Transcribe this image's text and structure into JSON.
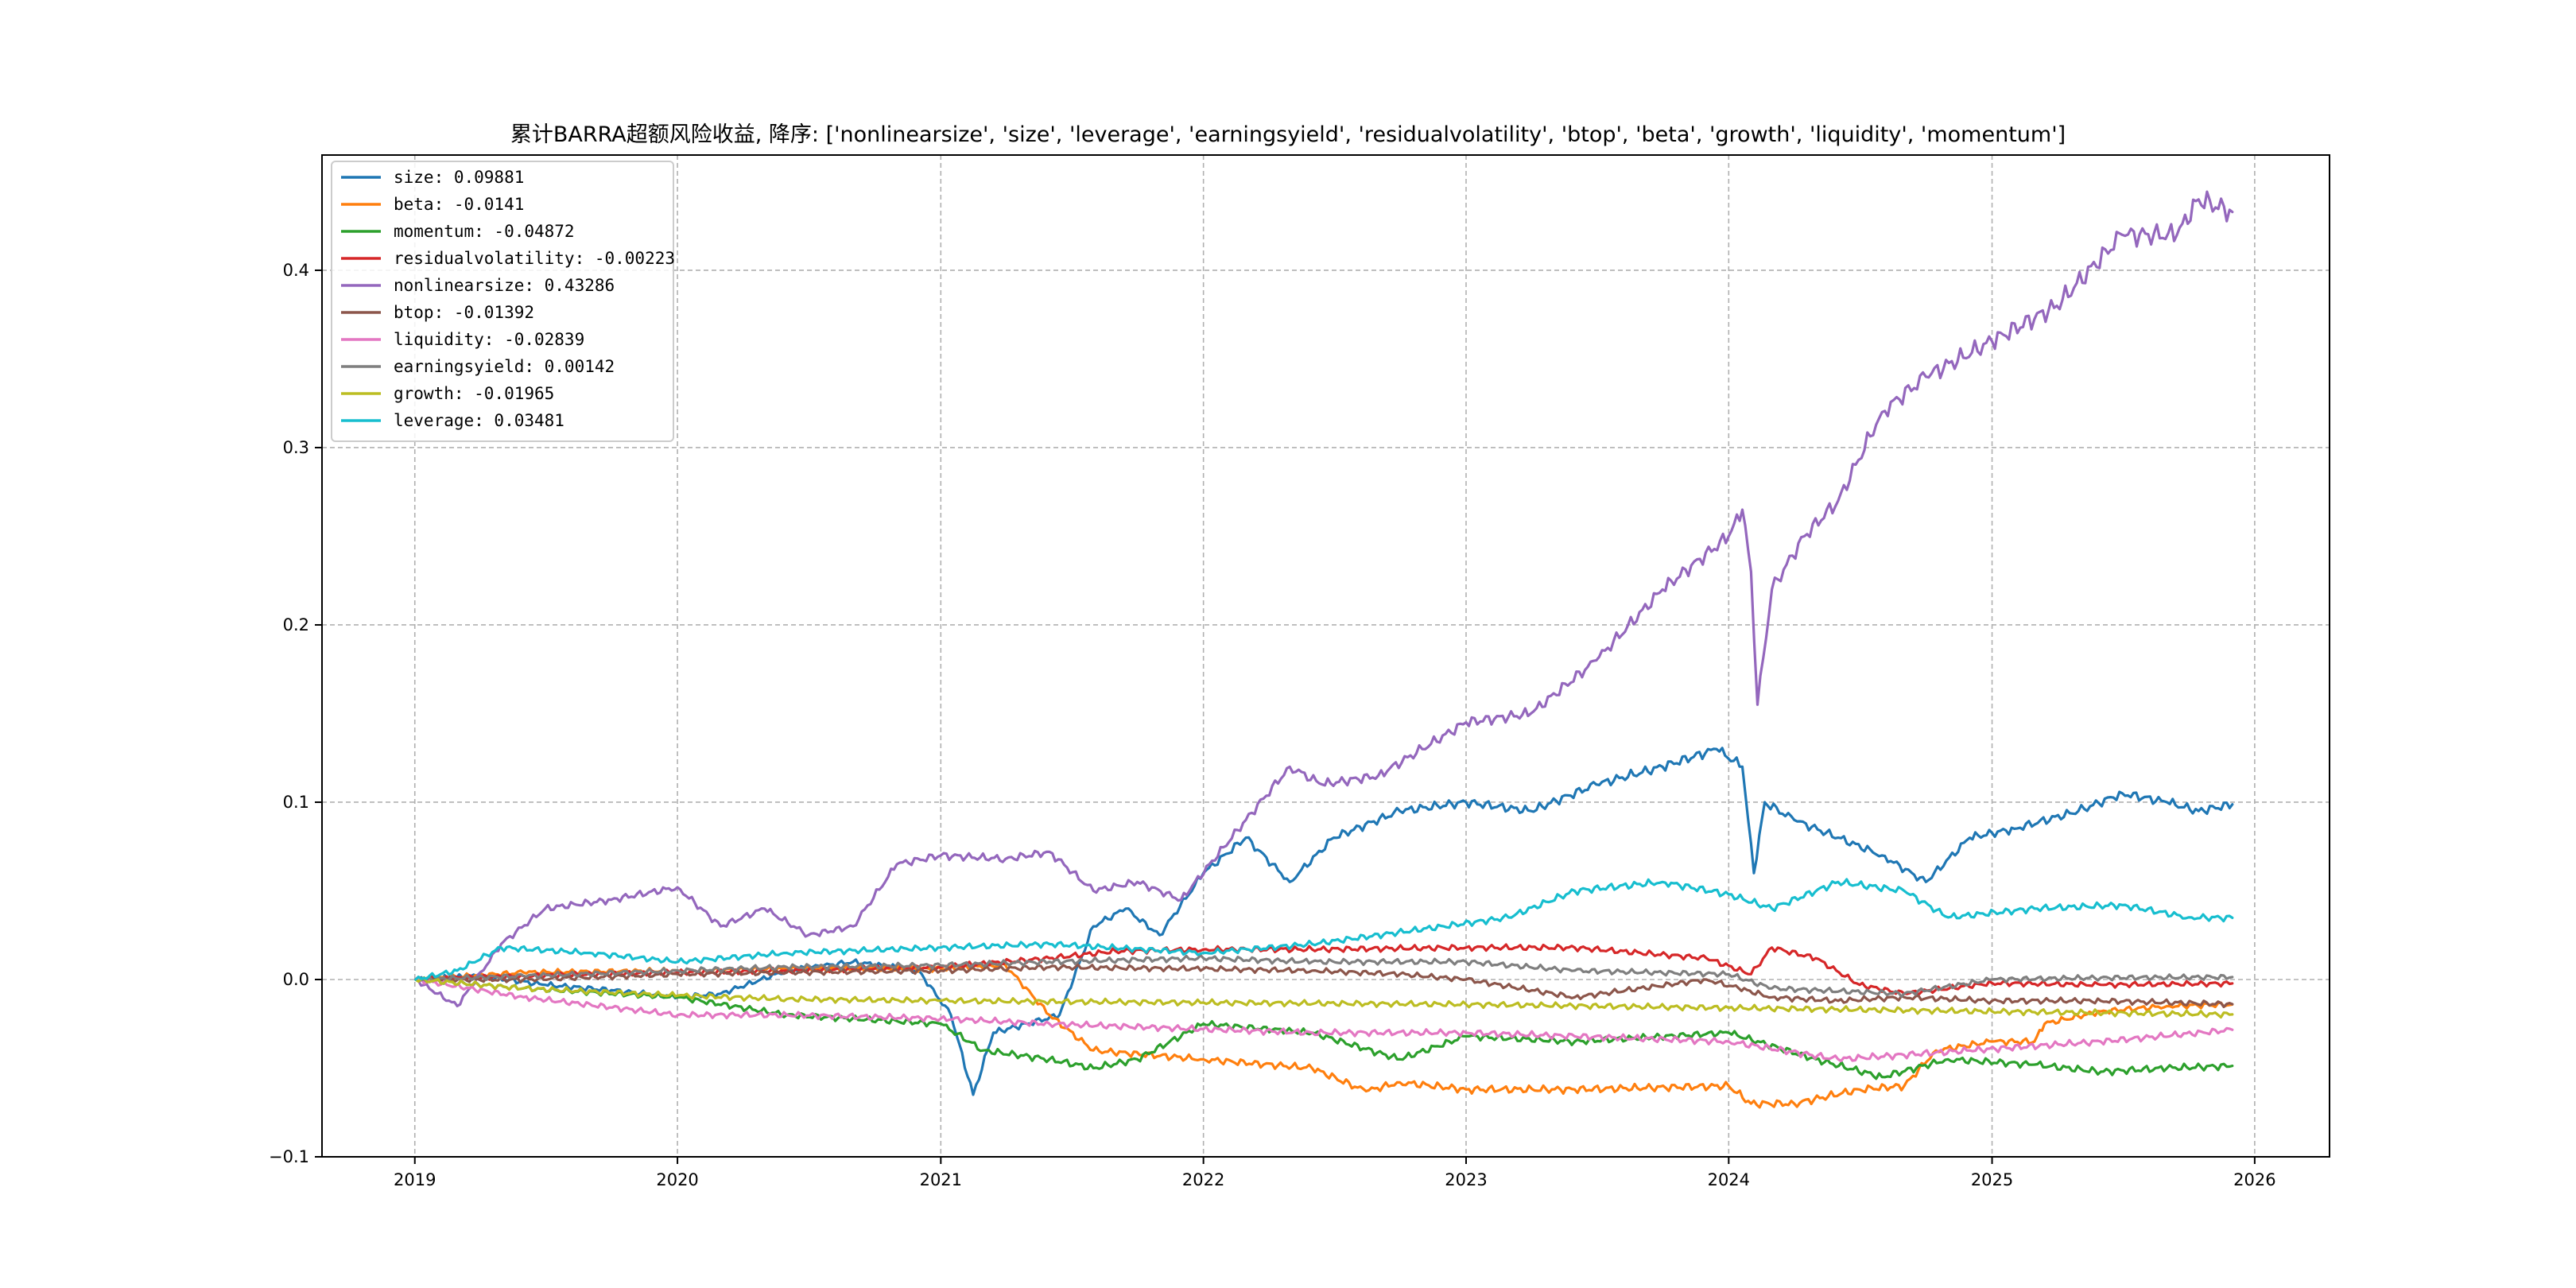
{
  "chart_data": {
    "type": "line",
    "title": "累计BARRA超额风险收益,  降序: ['nonlinearsize', 'size', 'leverage', 'earningsyield', 'residualvolatility', 'btop', 'beta', 'growth', 'liquidity', 'momentum']",
    "xlabel": "",
    "ylabel": "",
    "x_axis": "date",
    "xlim": [
      "2018-08-25",
      "2026-04-15"
    ],
    "ylim": [
      -0.1,
      0.465
    ],
    "x_ticks": [
      "2019",
      "2020",
      "2021",
      "2022",
      "2023",
      "2024",
      "2025",
      "2026"
    ],
    "y_ticks": [
      -0.1,
      0.0,
      0.1,
      0.2,
      0.3,
      0.4
    ],
    "y_tick_labels": [
      "−0.1",
      "0.0",
      "0.1",
      "0.2",
      "0.3",
      "0.4"
    ],
    "grid": true,
    "legend_placement": "upper-left",
    "series": [
      {
        "name": "size",
        "legend_label": "size: 0.09881",
        "color": "#1f77b4",
        "points": [
          [
            "2019-01-02",
            0.0
          ],
          [
            "2019-04-01",
            0.002
          ],
          [
            "2019-07-01",
            -0.003
          ],
          [
            "2019-10-01",
            -0.006
          ],
          [
            "2020-01-02",
            -0.01
          ],
          [
            "2020-03-01",
            -0.008
          ],
          [
            "2020-06-01",
            0.005
          ],
          [
            "2020-09-01",
            0.01
          ],
          [
            "2020-12-01",
            0.005
          ],
          [
            "2021-01-15",
            -0.02
          ],
          [
            "2021-02-15",
            -0.065
          ],
          [
            "2021-03-15",
            -0.03
          ],
          [
            "2021-05-01",
            -0.025
          ],
          [
            "2021-06-15",
            -0.02
          ],
          [
            "2021-08-01",
            0.03
          ],
          [
            "2021-09-15",
            0.04
          ],
          [
            "2021-11-01",
            0.025
          ],
          [
            "2022-01-01",
            0.06
          ],
          [
            "2022-03-01",
            0.08
          ],
          [
            "2022-05-01",
            0.055
          ],
          [
            "2022-07-01",
            0.08
          ],
          [
            "2022-10-01",
            0.095
          ],
          [
            "2023-01-01",
            0.1
          ],
          [
            "2023-04-01",
            0.095
          ],
          [
            "2023-07-01",
            0.11
          ],
          [
            "2023-10-01",
            0.12
          ],
          [
            "2023-12-15",
            0.13
          ],
          [
            "2024-01-20",
            0.12
          ],
          [
            "2024-02-05",
            0.06
          ],
          [
            "2024-02-20",
            0.1
          ],
          [
            "2024-04-01",
            0.09
          ],
          [
            "2024-06-01",
            0.08
          ],
          [
            "2024-08-01",
            0.07
          ],
          [
            "2024-10-01",
            0.055
          ],
          [
            "2024-12-01",
            0.08
          ],
          [
            "2025-02-01",
            0.085
          ],
          [
            "2025-05-01",
            0.095
          ],
          [
            "2025-07-01",
            0.105
          ],
          [
            "2025-09-01",
            0.1
          ],
          [
            "2025-10-15",
            0.095
          ],
          [
            "2025-12-01",
            0.0988
          ]
        ]
      },
      {
        "name": "beta",
        "legend_label": "beta: -0.0141",
        "color": "#ff7f0e",
        "points": [
          [
            "2019-01-02",
            0.0
          ],
          [
            "2019-06-01",
            0.004
          ],
          [
            "2020-01-02",
            0.005
          ],
          [
            "2020-06-01",
            0.006
          ],
          [
            "2021-01-01",
            0.006
          ],
          [
            "2021-04-01",
            0.008
          ],
          [
            "2021-06-01",
            -0.02
          ],
          [
            "2021-08-01",
            -0.04
          ],
          [
            "2022-01-01",
            -0.045
          ],
          [
            "2022-06-01",
            -0.05
          ],
          [
            "2022-08-15",
            -0.063
          ],
          [
            "2022-10-01",
            -0.058
          ],
          [
            "2023-01-01",
            -0.062
          ],
          [
            "2023-06-01",
            -0.062
          ],
          [
            "2024-01-01",
            -0.06
          ],
          [
            "2024-02-01",
            -0.07
          ],
          [
            "2024-04-01",
            -0.07
          ],
          [
            "2024-07-01",
            -0.062
          ],
          [
            "2024-09-01",
            -0.06
          ],
          [
            "2024-10-15",
            -0.04
          ],
          [
            "2025-01-01",
            -0.035
          ],
          [
            "2025-03-01",
            -0.035
          ],
          [
            "2025-03-15",
            -0.025
          ],
          [
            "2025-06-01",
            -0.018
          ],
          [
            "2025-09-01",
            -0.015
          ],
          [
            "2025-12-01",
            -0.0141
          ]
        ]
      },
      {
        "name": "momentum",
        "legend_label": "momentum: -0.04872",
        "color": "#2ca02c",
        "points": [
          [
            "2019-01-02",
            0.0
          ],
          [
            "2019-06-01",
            -0.005
          ],
          [
            "2020-01-02",
            -0.01
          ],
          [
            "2020-06-01",
            -0.02
          ],
          [
            "2021-01-01",
            -0.025
          ],
          [
            "2021-03-01",
            -0.04
          ],
          [
            "2021-06-01",
            -0.045
          ],
          [
            "2021-08-01",
            -0.05
          ],
          [
            "2021-10-01",
            -0.045
          ],
          [
            "2022-01-01",
            -0.025
          ],
          [
            "2022-06-01",
            -0.03
          ],
          [
            "2022-10-01",
            -0.045
          ],
          [
            "2023-01-01",
            -0.032
          ],
          [
            "2023-06-01",
            -0.035
          ],
          [
            "2024-01-01",
            -0.03
          ],
          [
            "2024-05-01",
            -0.045
          ],
          [
            "2024-08-01",
            -0.055
          ],
          [
            "2024-11-01",
            -0.045
          ],
          [
            "2025-03-01",
            -0.048
          ],
          [
            "2025-06-01",
            -0.052
          ],
          [
            "2025-09-01",
            -0.05
          ],
          [
            "2025-12-01",
            -0.0487
          ]
        ]
      },
      {
        "name": "residualvolatility",
        "legend_label": "residualvolatility: -0.00223",
        "color": "#d62728",
        "points": [
          [
            "2019-01-02",
            0.0
          ],
          [
            "2019-06-01",
            0.002
          ],
          [
            "2020-01-02",
            0.004
          ],
          [
            "2020-06-01",
            0.005
          ],
          [
            "2021-01-01",
            0.007
          ],
          [
            "2021-06-01",
            0.012
          ],
          [
            "2021-09-01",
            0.016
          ],
          [
            "2022-01-01",
            0.017
          ],
          [
            "2022-06-01",
            0.017
          ],
          [
            "2023-01-01",
            0.018
          ],
          [
            "2023-06-01",
            0.018
          ],
          [
            "2023-12-01",
            0.012
          ],
          [
            "2024-02-01",
            0.003
          ],
          [
            "2024-03-01",
            0.018
          ],
          [
            "2024-05-01",
            0.012
          ],
          [
            "2024-07-01",
            -0.003
          ],
          [
            "2024-09-01",
            -0.008
          ],
          [
            "2025-01-01",
            -0.002
          ],
          [
            "2025-06-01",
            -0.003
          ],
          [
            "2025-12-01",
            -0.0022
          ]
        ]
      },
      {
        "name": "nonlinearsize",
        "legend_label": "nonlinearsize: 0.43286",
        "color": "#9467bd",
        "points": [
          [
            "2019-01-02",
            0.0
          ],
          [
            "2019-03-01",
            -0.015
          ],
          [
            "2019-05-01",
            0.02
          ],
          [
            "2019-07-01",
            0.04
          ],
          [
            "2019-10-01",
            0.045
          ],
          [
            "2020-01-01",
            0.052
          ],
          [
            "2020-03-01",
            0.03
          ],
          [
            "2020-05-01",
            0.04
          ],
          [
            "2020-07-01",
            0.025
          ],
          [
            "2020-09-01",
            0.03
          ],
          [
            "2020-11-01",
            0.065
          ],
          [
            "2021-01-01",
            0.07
          ],
          [
            "2021-04-01",
            0.068
          ],
          [
            "2021-06-01",
            0.072
          ],
          [
            "2021-08-01",
            0.05
          ],
          [
            "2021-10-01",
            0.055
          ],
          [
            "2021-12-01",
            0.045
          ],
          [
            "2022-03-01",
            0.09
          ],
          [
            "2022-05-01",
            0.12
          ],
          [
            "2022-06-15",
            0.11
          ],
          [
            "2022-09-01",
            0.115
          ],
          [
            "2022-11-01",
            0.13
          ],
          [
            "2023-01-01",
            0.145
          ],
          [
            "2023-04-01",
            0.15
          ],
          [
            "2023-07-01",
            0.18
          ],
          [
            "2023-10-01",
            0.22
          ],
          [
            "2024-01-01",
            0.25
          ],
          [
            "2024-01-20",
            0.265
          ],
          [
            "2024-02-01",
            0.23
          ],
          [
            "2024-02-10",
            0.155
          ],
          [
            "2024-03-01",
            0.22
          ],
          [
            "2024-04-15",
            0.25
          ],
          [
            "2024-06-01",
            0.27
          ],
          [
            "2024-08-01",
            0.32
          ],
          [
            "2024-10-01",
            0.34
          ],
          [
            "2025-01-01",
            0.36
          ],
          [
            "2025-04-01",
            0.38
          ],
          [
            "2025-07-01",
            0.42
          ],
          [
            "2025-09-15",
            0.42
          ],
          [
            "2025-10-15",
            0.44
          ],
          [
            "2025-12-01",
            0.4329
          ]
        ]
      },
      {
        "name": "btop",
        "legend_label": "btop: -0.01392",
        "color": "#8c564b",
        "points": [
          [
            "2019-01-02",
            0.0
          ],
          [
            "2019-06-01",
            0.0
          ],
          [
            "2020-01-02",
            0.003
          ],
          [
            "2020-06-01",
            0.004
          ],
          [
            "2021-01-01",
            0.005
          ],
          [
            "2021-06-01",
            0.007
          ],
          [
            "2022-01-01",
            0.006
          ],
          [
            "2022-06-01",
            0.005
          ],
          [
            "2022-10-01",
            0.003
          ],
          [
            "2023-01-01",
            0.0
          ],
          [
            "2023-06-01",
            -0.01
          ],
          [
            "2023-12-01",
            0.0
          ],
          [
            "2024-01-15",
            -0.005
          ],
          [
            "2024-03-01",
            -0.01
          ],
          [
            "2024-06-01",
            -0.012
          ],
          [
            "2024-09-01",
            -0.01
          ],
          [
            "2025-01-01",
            -0.012
          ],
          [
            "2025-06-01",
            -0.012
          ],
          [
            "2025-12-01",
            -0.0139
          ]
        ]
      },
      {
        "name": "liquidity",
        "legend_label": "liquidity: -0.02839",
        "color": "#e377c2",
        "points": [
          [
            "2019-01-02",
            0.0
          ],
          [
            "2019-06-01",
            -0.01
          ],
          [
            "2020-01-02",
            -0.02
          ],
          [
            "2020-06-01",
            -0.02
          ],
          [
            "2021-01-01",
            -0.022
          ],
          [
            "2021-06-01",
            -0.025
          ],
          [
            "2022-01-01",
            -0.028
          ],
          [
            "2022-06-01",
            -0.03
          ],
          [
            "2023-01-01",
            -0.03
          ],
          [
            "2023-06-01",
            -0.032
          ],
          [
            "2024-01-01",
            -0.035
          ],
          [
            "2024-06-01",
            -0.045
          ],
          [
            "2024-12-01",
            -0.04
          ],
          [
            "2025-06-01",
            -0.035
          ],
          [
            "2025-12-01",
            -0.0284
          ]
        ]
      },
      {
        "name": "earningsyield",
        "legend_label": "earningsyield: 0.00142",
        "color": "#7f7f7f",
        "points": [
          [
            "2019-01-02",
            0.0
          ],
          [
            "2019-06-01",
            0.002
          ],
          [
            "2020-01-02",
            0.005
          ],
          [
            "2020-06-01",
            0.007
          ],
          [
            "2021-01-01",
            0.008
          ],
          [
            "2021-06-01",
            0.01
          ],
          [
            "2022-01-01",
            0.012
          ],
          [
            "2022-06-01",
            0.01
          ],
          [
            "2023-01-01",
            0.01
          ],
          [
            "2023-06-01",
            0.005
          ],
          [
            "2024-01-01",
            0.003
          ],
          [
            "2024-03-01",
            -0.005
          ],
          [
            "2024-09-01",
            -0.008
          ],
          [
            "2025-01-01",
            0.0
          ],
          [
            "2025-06-01",
            0.001
          ],
          [
            "2025-12-01",
            0.0014
          ]
        ]
      },
      {
        "name": "growth",
        "legend_label": "growth: -0.01965",
        "color": "#bcbd22",
        "points": [
          [
            "2019-01-02",
            0.0
          ],
          [
            "2019-06-01",
            -0.005
          ],
          [
            "2020-01-02",
            -0.009
          ],
          [
            "2020-06-01",
            -0.011
          ],
          [
            "2021-01-01",
            -0.012
          ],
          [
            "2022-01-01",
            -0.013
          ],
          [
            "2023-01-01",
            -0.014
          ],
          [
            "2024-01-01",
            -0.016
          ],
          [
            "2025-01-01",
            -0.018
          ],
          [
            "2025-12-01",
            -0.0197
          ]
        ]
      },
      {
        "name": "leverage",
        "legend_label": "leverage: 0.03481",
        "color": "#17becf",
        "points": [
          [
            "2019-01-02",
            0.0
          ],
          [
            "2019-03-01",
            0.005
          ],
          [
            "2019-05-01",
            0.018
          ],
          [
            "2019-09-01",
            0.015
          ],
          [
            "2020-01-02",
            0.01
          ],
          [
            "2020-06-01",
            0.015
          ],
          [
            "2021-01-01",
            0.018
          ],
          [
            "2021-06-01",
            0.02
          ],
          [
            "2022-01-01",
            0.015
          ],
          [
            "2022-06-01",
            0.02
          ],
          [
            "2022-12-01",
            0.03
          ],
          [
            "2023-03-01",
            0.035
          ],
          [
            "2023-06-01",
            0.05
          ],
          [
            "2023-10-01",
            0.055
          ],
          [
            "2024-01-01",
            0.048
          ],
          [
            "2024-03-01",
            0.04
          ],
          [
            "2024-06-01",
            0.055
          ],
          [
            "2024-09-01",
            0.05
          ],
          [
            "2024-11-01",
            0.035
          ],
          [
            "2025-03-01",
            0.04
          ],
          [
            "2025-07-01",
            0.042
          ],
          [
            "2025-10-01",
            0.035
          ],
          [
            "2025-12-01",
            0.0348
          ]
        ]
      }
    ]
  }
}
